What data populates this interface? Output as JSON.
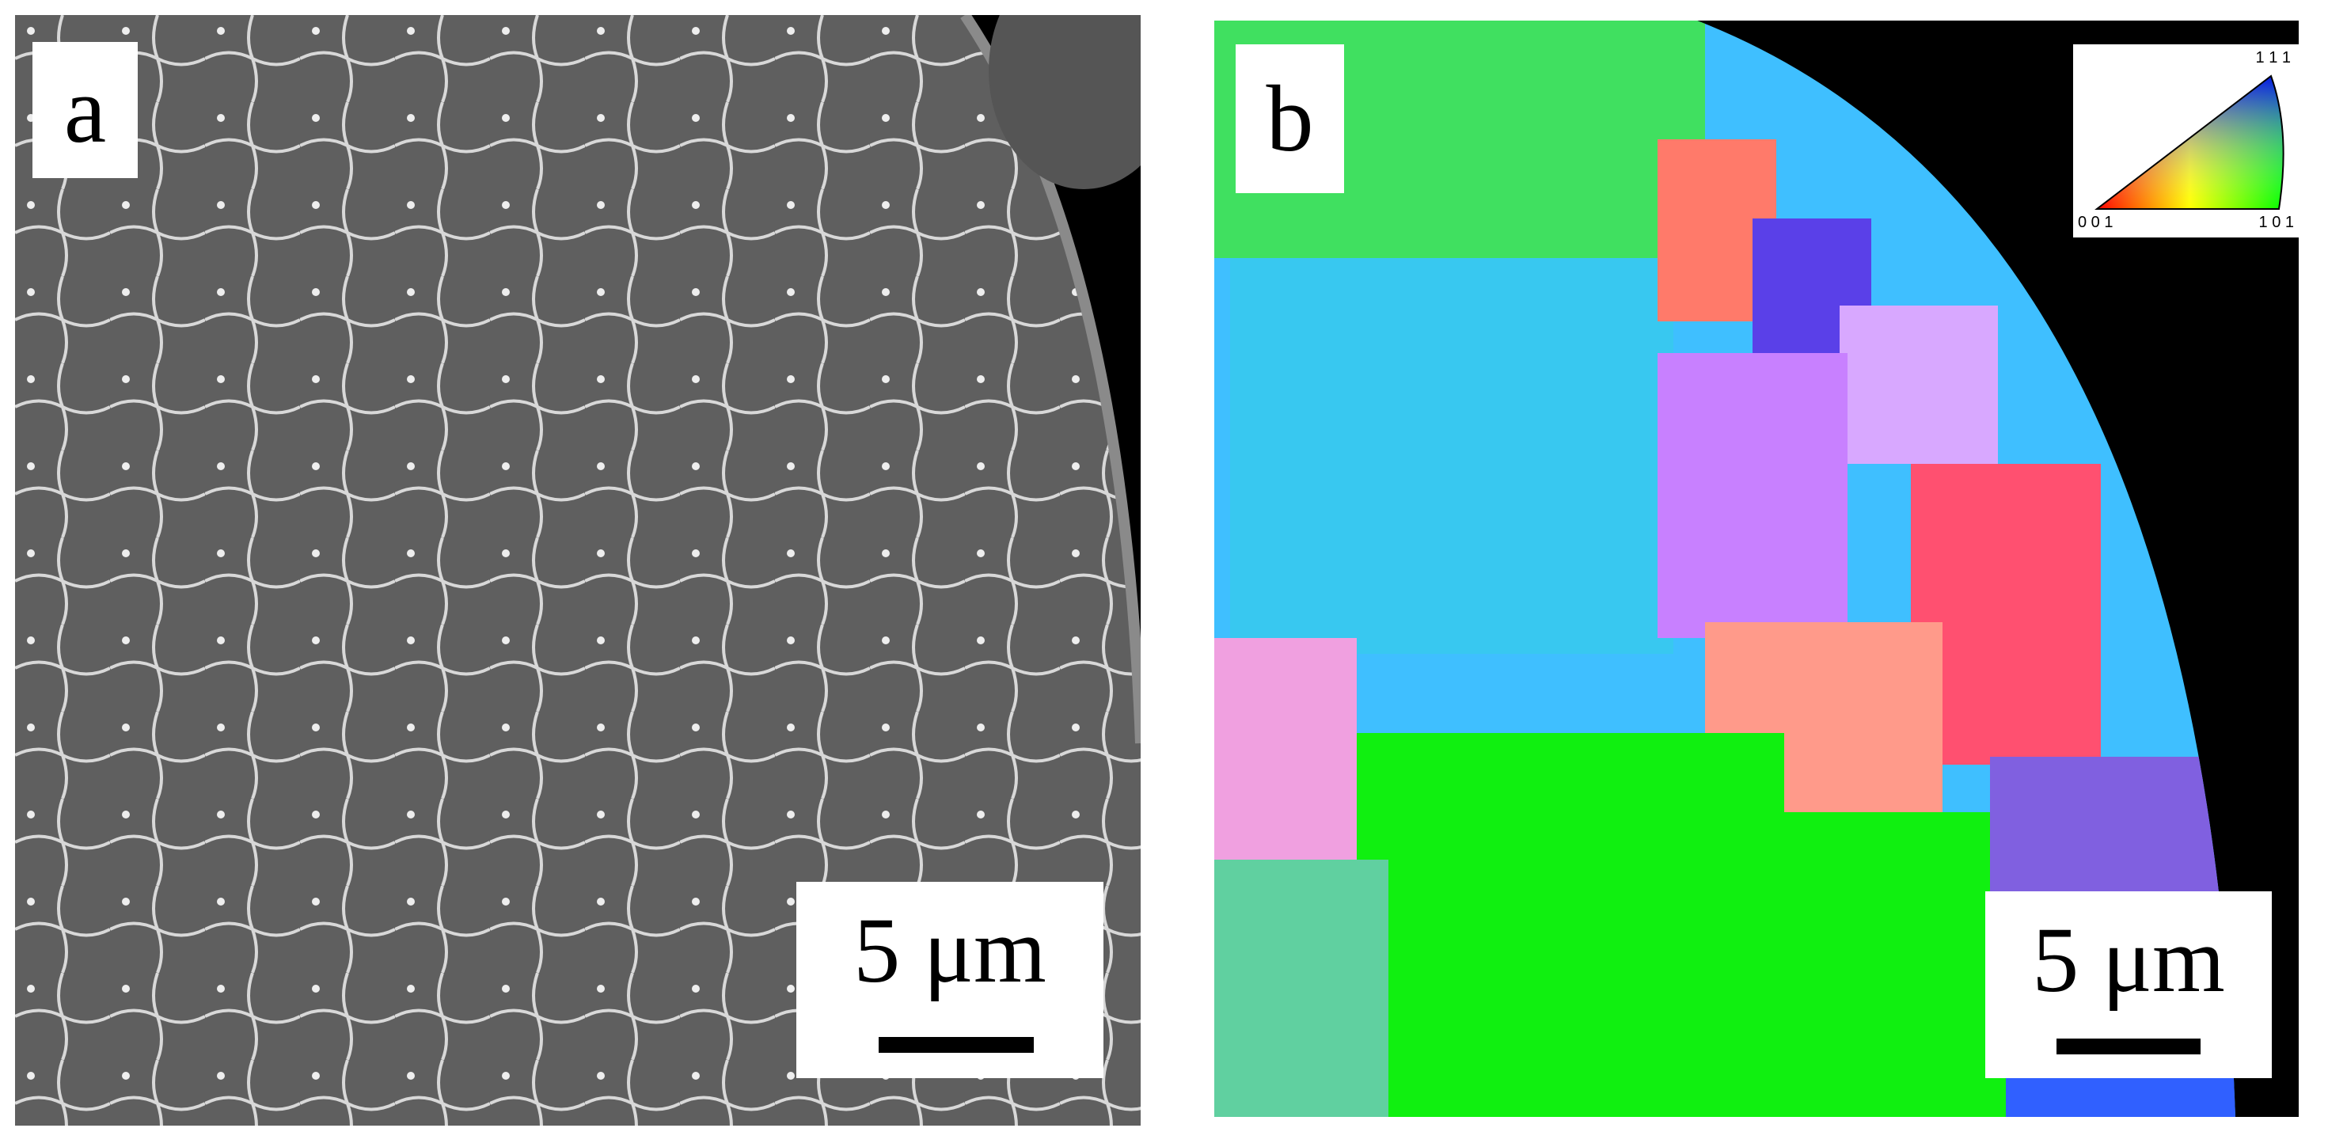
{
  "panels": [
    {
      "label": "a",
      "scale_bar": "5 μm"
    },
    {
      "label": "b",
      "scale_bar": "5 μm"
    }
  ],
  "legend": {
    "top": "1 1 1",
    "left": "0 0 1",
    "right": "1 0 1"
  }
}
